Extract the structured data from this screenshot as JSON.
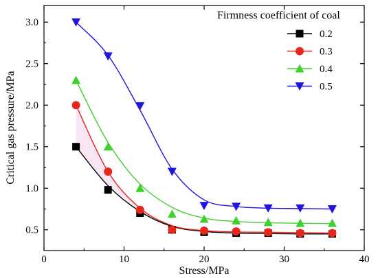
{
  "chart_data": {
    "type": "line",
    "xlabel": "Stress/MPa",
    "ylabel": "Critical gas pressure/MPa",
    "xlim": [
      0,
      40
    ],
    "ylim": [
      0.25,
      3.2
    ],
    "xticks": [
      "0",
      "10",
      "20",
      "30",
      "40"
    ],
    "yticks": [
      "0.5",
      "1.0",
      "1.5",
      "2.0",
      "2.5",
      "3.0"
    ],
    "legend_title": "Firmness coefficient of coal",
    "legend_position": "top-right",
    "grid": false,
    "x": [
      4,
      8,
      12,
      16,
      20,
      24,
      28,
      32,
      36
    ],
    "series": [
      {
        "name": "0.2",
        "color": "#000000",
        "marker": "square",
        "values": [
          1.5,
          0.98,
          0.7,
          0.5,
          0.47,
          0.46,
          0.46,
          0.45,
          0.45
        ],
        "curve": [
          1.5,
          1.03,
          0.72,
          0.54,
          0.48,
          0.46,
          0.455,
          0.45,
          0.45
        ]
      },
      {
        "name": "0.3",
        "color": "#e8261c",
        "marker": "circle",
        "values": [
          2.0,
          1.2,
          0.74,
          0.5,
          0.49,
          0.48,
          0.47,
          0.46,
          0.46
        ],
        "curve": [
          2.0,
          1.2,
          0.76,
          0.55,
          0.49,
          0.475,
          0.47,
          0.465,
          0.46
        ]
      },
      {
        "name": "0.4",
        "color": "#3ed12c",
        "marker": "triangle-up",
        "values": [
          2.3,
          1.5,
          1.0,
          0.69,
          0.63,
          0.61,
          0.59,
          0.58,
          0.58
        ],
        "curve": [
          2.3,
          1.55,
          1.05,
          0.77,
          0.64,
          0.6,
          0.585,
          0.578,
          0.575
        ]
      },
      {
        "name": "0.5",
        "color": "#1f14e0",
        "marker": "triangle-down",
        "values": [
          3.0,
          2.59,
          1.99,
          1.2,
          0.79,
          0.78,
          0.76,
          0.76,
          0.75
        ],
        "curve": [
          3.0,
          2.6,
          1.94,
          1.23,
          0.86,
          0.78,
          0.76,
          0.755,
          0.75
        ]
      }
    ]
  }
}
